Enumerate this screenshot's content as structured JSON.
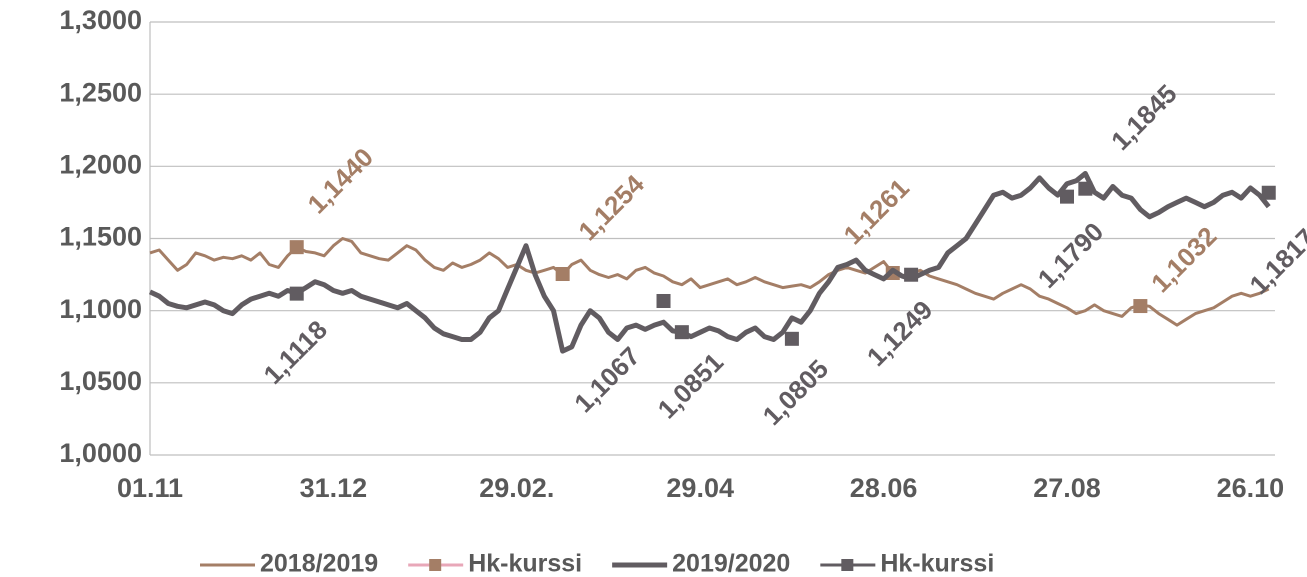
{
  "chart_data": {
    "type": "line",
    "categories": [
      "01.11",
      null,
      null,
      null,
      null,
      null,
      null,
      null,
      null,
      null,
      null,
      null,
      null,
      null,
      null,
      null,
      null,
      null,
      null,
      null,
      "31.12",
      null,
      null,
      null,
      null,
      null,
      null,
      null,
      null,
      null,
      null,
      null,
      null,
      null,
      null,
      null,
      null,
      null,
      null,
      null,
      "29.02.",
      null,
      null,
      null,
      null,
      null,
      null,
      null,
      null,
      null,
      null,
      null,
      null,
      null,
      null,
      null,
      null,
      null,
      null,
      null,
      "29.04",
      null,
      null,
      null,
      null,
      null,
      null,
      null,
      null,
      null,
      null,
      null,
      null,
      null,
      null,
      null,
      null,
      null,
      null,
      null,
      "28.06",
      null,
      null,
      null,
      null,
      null,
      null,
      null,
      null,
      null,
      null,
      null,
      null,
      null,
      null,
      null,
      null,
      null,
      null,
      null,
      "27.08",
      null,
      null,
      null,
      null,
      null,
      null,
      null,
      null,
      null,
      null,
      null,
      null,
      null,
      null,
      null,
      null,
      null,
      null,
      null,
      "26.10",
      null,
      null
    ],
    "series": [
      {
        "name": "2018/2019",
        "color": "#a47e66",
        "kind": "line",
        "values": [
          1.14,
          1.142,
          1.135,
          1.128,
          1.132,
          1.14,
          1.138,
          1.135,
          1.137,
          1.136,
          1.138,
          1.135,
          1.14,
          1.132,
          1.13,
          1.138,
          1.144,
          1.141,
          1.14,
          1.138,
          1.145,
          1.15,
          1.148,
          1.14,
          1.138,
          1.136,
          1.135,
          1.14,
          1.145,
          1.142,
          1.135,
          1.13,
          1.128,
          1.133,
          1.13,
          1.132,
          1.135,
          1.14,
          1.136,
          1.13,
          1.132,
          1.128,
          1.126,
          1.128,
          1.13,
          1.125,
          1.132,
          1.135,
          1.128,
          1.125,
          1.123,
          1.125,
          1.122,
          1.128,
          1.13,
          1.126,
          1.124,
          1.12,
          1.118,
          1.122,
          1.116,
          1.118,
          1.12,
          1.122,
          1.118,
          1.12,
          1.123,
          1.12,
          1.118,
          1.116,
          1.117,
          1.118,
          1.116,
          1.12,
          1.125,
          1.128,
          1.13,
          1.128,
          1.126,
          1.13,
          1.134,
          1.126,
          1.124,
          1.126,
          1.128,
          1.124,
          1.122,
          1.12,
          1.118,
          1.115,
          1.112,
          1.11,
          1.108,
          1.112,
          1.115,
          1.118,
          1.115,
          1.11,
          1.108,
          1.105,
          1.102,
          1.098,
          1.1,
          1.104,
          1.1,
          1.098,
          1.096,
          1.102,
          1.104,
          1.103,
          1.098,
          1.094,
          1.09,
          1.094,
          1.098,
          1.1,
          1.102,
          1.106,
          1.11,
          1.112,
          1.11,
          1.112,
          1.115
        ]
      },
      {
        "name": "Hk-kurssi",
        "color": "#a47e66",
        "line_color": "#e8a7b8",
        "kind": "marker",
        "values": [
          null,
          null,
          null,
          null,
          null,
          null,
          null,
          null,
          null,
          null,
          null,
          null,
          null,
          null,
          null,
          null,
          1.144,
          null,
          null,
          null,
          null,
          null,
          null,
          null,
          null,
          null,
          null,
          null,
          null,
          null,
          null,
          null,
          null,
          null,
          null,
          null,
          null,
          null,
          null,
          null,
          null,
          null,
          null,
          null,
          null,
          1.1254,
          null,
          null,
          null,
          null,
          null,
          null,
          null,
          null,
          null,
          null,
          null,
          null,
          null,
          null,
          null,
          null,
          null,
          null,
          null,
          null,
          null,
          null,
          null,
          null,
          null,
          null,
          null,
          null,
          null,
          null,
          null,
          null,
          null,
          null,
          null,
          1.1261,
          null,
          null,
          null,
          null,
          null,
          null,
          null,
          null,
          null,
          null,
          null,
          null,
          null,
          null,
          null,
          null,
          null,
          null,
          null,
          null,
          null,
          null,
          null,
          null,
          null,
          null,
          1.1032,
          null,
          null,
          null,
          null,
          null,
          null,
          null,
          null,
          null,
          null,
          null,
          null,
          null,
          null
        ],
        "value_labels": [
          null,
          null,
          null,
          null,
          null,
          null,
          null,
          null,
          null,
          null,
          null,
          null,
          null,
          null,
          null,
          null,
          "1,1440",
          null,
          null,
          null,
          null,
          null,
          null,
          null,
          null,
          null,
          null,
          null,
          null,
          null,
          null,
          null,
          null,
          null,
          null,
          null,
          null,
          null,
          null,
          null,
          null,
          null,
          null,
          null,
          null,
          "1,1254",
          null,
          null,
          null,
          null,
          null,
          null,
          null,
          null,
          null,
          null,
          null,
          null,
          null,
          null,
          null,
          null,
          null,
          null,
          null,
          null,
          null,
          null,
          null,
          null,
          null,
          null,
          null,
          null,
          null,
          null,
          null,
          null,
          null,
          null,
          null,
          "1,1261",
          null,
          null,
          null,
          null,
          null,
          null,
          null,
          null,
          null,
          null,
          null,
          null,
          null,
          null,
          null,
          null,
          null,
          null,
          null,
          null,
          null,
          null,
          null,
          null,
          null,
          null,
          "1,1032",
          null,
          null,
          null,
          null,
          null,
          null,
          null,
          null,
          null,
          null,
          null,
          null,
          null,
          null
        ]
      },
      {
        "name": "2019/2020",
        "color": "#615c61",
        "kind": "line",
        "values": [
          1.113,
          1.11,
          1.105,
          1.103,
          1.102,
          1.104,
          1.106,
          1.104,
          1.1,
          1.098,
          1.104,
          1.108,
          1.11,
          1.112,
          1.11,
          1.114,
          1.112,
          1.116,
          1.12,
          1.118,
          1.114,
          1.112,
          1.114,
          1.11,
          1.108,
          1.106,
          1.104,
          1.102,
          1.105,
          1.1,
          1.095,
          1.088,
          1.084,
          1.082,
          1.08,
          1.08,
          1.085,
          1.095,
          1.1,
          1.115,
          1.13,
          1.145,
          1.125,
          1.11,
          1.1,
          1.072,
          1.075,
          1.09,
          1.1,
          1.095,
          1.085,
          1.08,
          1.088,
          1.09,
          1.087,
          1.09,
          1.092,
          1.086,
          1.085,
          1.082,
          1.085,
          1.088,
          1.086,
          1.082,
          1.08,
          1.085,
          1.088,
          1.082,
          1.08,
          1.085,
          1.095,
          1.092,
          1.1,
          1.112,
          1.12,
          1.13,
          1.132,
          1.135,
          1.128,
          1.125,
          1.122,
          1.128,
          1.124,
          1.122,
          1.125,
          1.128,
          1.13,
          1.14,
          1.145,
          1.15,
          1.16,
          1.17,
          1.18,
          1.182,
          1.178,
          1.18,
          1.185,
          1.192,
          1.185,
          1.18,
          1.188,
          1.19,
          1.195,
          1.182,
          1.178,
          1.186,
          1.18,
          1.178,
          1.17,
          1.165,
          1.168,
          1.172,
          1.175,
          1.178,
          1.175,
          1.172,
          1.175,
          1.18,
          1.182,
          1.178,
          1.185,
          1.18,
          1.172
        ]
      },
      {
        "name": "Hk-kurssi",
        "color": "#615c61",
        "line_color": "#615c61",
        "kind": "marker",
        "values": [
          null,
          null,
          null,
          null,
          null,
          null,
          null,
          null,
          null,
          null,
          null,
          null,
          null,
          null,
          null,
          null,
          1.1118,
          null,
          null,
          null,
          null,
          null,
          null,
          null,
          null,
          null,
          null,
          null,
          null,
          null,
          null,
          null,
          null,
          null,
          null,
          null,
          null,
          null,
          null,
          null,
          null,
          null,
          null,
          null,
          null,
          null,
          null,
          null,
          null,
          null,
          null,
          null,
          null,
          null,
          null,
          null,
          1.1067,
          null,
          1.0851,
          null,
          null,
          null,
          null,
          null,
          null,
          null,
          null,
          null,
          null,
          null,
          1.0805,
          null,
          null,
          null,
          null,
          null,
          null,
          null,
          null,
          null,
          null,
          null,
          null,
          1.1249,
          null,
          null,
          null,
          null,
          null,
          null,
          null,
          null,
          null,
          null,
          null,
          null,
          null,
          null,
          null,
          null,
          1.179,
          null,
          1.1845,
          null,
          null,
          null,
          null,
          null,
          null,
          null,
          null,
          null,
          null,
          null,
          null,
          null,
          null,
          null,
          null,
          null,
          null,
          null,
          1.1817
        ],
        "value_labels": [
          null,
          null,
          null,
          null,
          null,
          null,
          null,
          null,
          null,
          null,
          null,
          null,
          null,
          null,
          null,
          null,
          "1,1118",
          null,
          null,
          null,
          null,
          null,
          null,
          null,
          null,
          null,
          null,
          null,
          null,
          null,
          null,
          null,
          null,
          null,
          null,
          null,
          null,
          null,
          null,
          null,
          null,
          null,
          null,
          null,
          null,
          null,
          null,
          null,
          null,
          null,
          null,
          null,
          null,
          null,
          null,
          null,
          "1,1067",
          null,
          "1,0851",
          null,
          null,
          null,
          null,
          null,
          null,
          null,
          null,
          null,
          null,
          null,
          "1,0805",
          null,
          null,
          null,
          null,
          null,
          null,
          null,
          null,
          null,
          null,
          null,
          null,
          "1,1249",
          null,
          null,
          null,
          null,
          null,
          null,
          null,
          null,
          null,
          null,
          null,
          null,
          null,
          null,
          null,
          null,
          "1,1790",
          null,
          "1,1845",
          null,
          null,
          null,
          null,
          null,
          null,
          null,
          null,
          null,
          null,
          null,
          null,
          null,
          null,
          null,
          null,
          null,
          null,
          null,
          "1,1817"
        ]
      }
    ],
    "ylim": [
      1.0,
      1.3
    ],
    "yticks": [
      {
        "value": 1.0,
        "label": "1,0000"
      },
      {
        "value": 1.05,
        "label": "1,0500"
      },
      {
        "value": 1.1,
        "label": "1,1000"
      },
      {
        "value": 1.15,
        "label": "1,1500"
      },
      {
        "value": 1.2,
        "label": "1,2000"
      },
      {
        "value": 1.25,
        "label": "1,2500"
      },
      {
        "value": 1.3,
        "label": "1,3000"
      }
    ],
    "grid": true,
    "legend": "bottom"
  }
}
